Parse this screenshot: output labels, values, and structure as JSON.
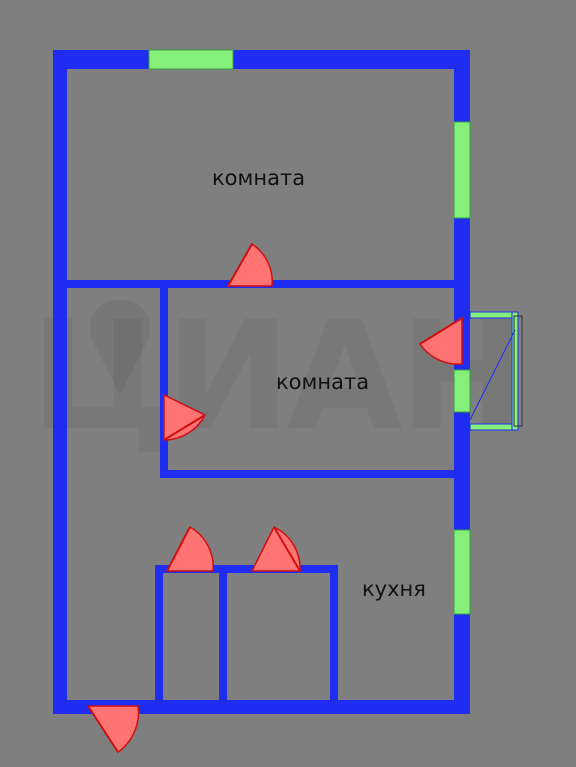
{
  "rooms": {
    "room_1": "комната",
    "room_2": "комната",
    "kitchen": "кухня"
  },
  "watermark": "ЦИАН",
  "colors": {
    "background": "#7f7f7f",
    "wall": "#1f2df2",
    "window": "#84f07a",
    "door": "#ff6a6a"
  },
  "icons": {
    "watermark_icon": "location-pin-icon"
  }
}
